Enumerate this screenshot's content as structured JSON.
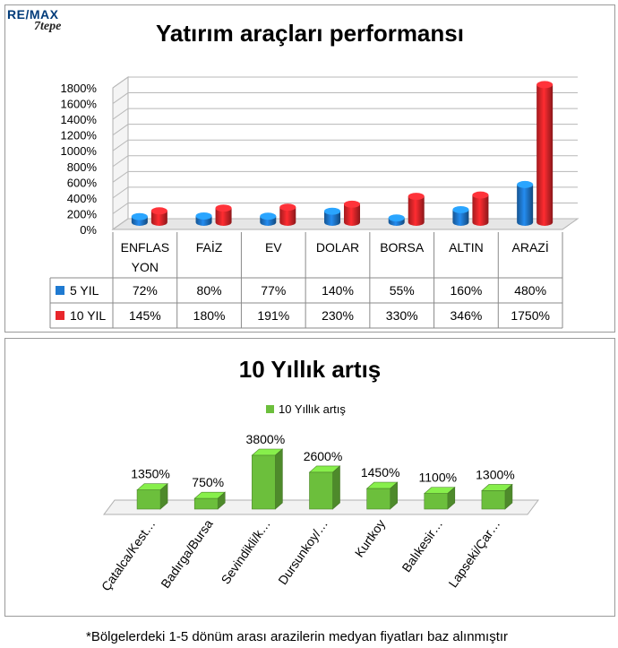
{
  "logo": {
    "brand": "RE/MAX",
    "office": "7tepe"
  },
  "chart_data": [
    {
      "type": "bar",
      "title": "Yatırım araçları performansı",
      "categories": [
        "ENFLAS YON",
        "FAİZ",
        "EV",
        "DOLAR",
        "BORSA",
        "ALTIN",
        "ARAZİ"
      ],
      "category_lines": [
        [
          "ENFLAS",
          "YON"
        ],
        [
          "FAİZ"
        ],
        [
          "EV"
        ],
        [
          "DOLAR"
        ],
        [
          "BORSA"
        ],
        [
          "ALTIN"
        ],
        [
          "ARAZİ"
        ]
      ],
      "series": [
        {
          "name": "5 YIL",
          "values": [
            72,
            80,
            77,
            140,
            55,
            160,
            480
          ],
          "labels": [
            "72%",
            "80%",
            "77%",
            "140%",
            "55%",
            "160%",
            "480%"
          ],
          "color": "#1f7ad1"
        },
        {
          "name": "10 YIL",
          "values": [
            145,
            180,
            191,
            230,
            330,
            346,
            1750
          ],
          "labels": [
            "145%",
            "180%",
            "191%",
            "230%",
            "330%",
            "346%",
            "1750%"
          ],
          "color": "#e8262b"
        }
      ],
      "y_ticks": [
        "0%",
        "200%",
        "400%",
        "600%",
        "800%",
        "1000%",
        "1200%",
        "1400%",
        "1600%",
        "1800%"
      ],
      "ylim": [
        0,
        1800
      ],
      "grid": true,
      "legend": "data-table"
    },
    {
      "type": "bar",
      "title": "10 Yıllık artış",
      "categories": [
        "Çatalca/Kest…",
        "Badırga/Bursa",
        "Sevindikli/k…",
        "Dursunkoy/…",
        "Kurtkoy",
        "Balıkesir…",
        "Lapseki/Çar…"
      ],
      "series": [
        {
          "name": "10 Yıllık artış",
          "values": [
            1350,
            750,
            3800,
            2600,
            1450,
            1100,
            1300
          ],
          "labels": [
            "1350%",
            "750%",
            "3800%",
            "2600%",
            "1450%",
            "1100%",
            "1300%"
          ],
          "color": "#6cbf3c"
        }
      ],
      "grid": false,
      "legend": "top"
    }
  ],
  "footnote": "*Bölgelerdeki 1-5 dönüm arası arazilerin medyan fiyatları baz alınmıştır"
}
